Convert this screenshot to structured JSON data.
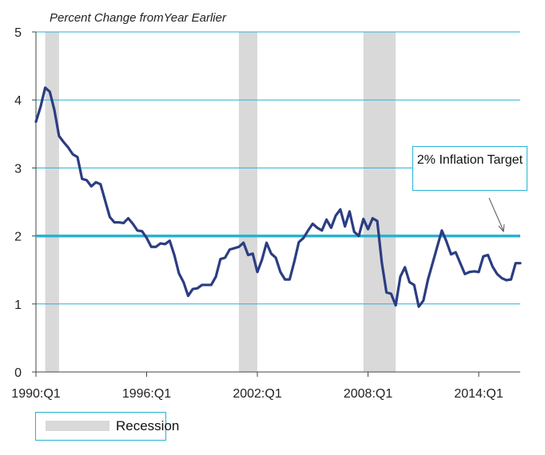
{
  "chart_data": {
    "type": "line",
    "title": "Percent Change fromYear Earlier",
    "ylim": [
      0,
      5
    ],
    "yticks": [
      "0",
      "1",
      "2",
      "3",
      "4",
      "5"
    ],
    "xlim": [
      "1990:Q1",
      "2016:Q1"
    ],
    "xticks": [
      "1990:Q1",
      "1996:Q1",
      "2002:Q1",
      "2008:Q1",
      "2014:Q1"
    ],
    "target_value": 2,
    "target_label": "2% Inflation Target",
    "legend": [
      "Recession"
    ],
    "recessions": [
      [
        "1990:Q3",
        "1991:Q1"
      ],
      [
        "2001:Q1",
        "2001:Q4"
      ],
      [
        "2007:Q4",
        "2009:Q2"
      ]
    ],
    "series": [
      {
        "values": [
          [
            "1990:Q1",
            3.68
          ],
          [
            "1990:Q2",
            3.9
          ],
          [
            "1990:Q3",
            4.18
          ],
          [
            "1990:Q4",
            4.12
          ],
          [
            "1991:Q1",
            3.85
          ],
          [
            "1991:Q2",
            3.47
          ],
          [
            "1991:Q3",
            3.38
          ],
          [
            "1991:Q4",
            3.3
          ],
          [
            "1992:Q1",
            3.2
          ],
          [
            "1992:Q2",
            3.16
          ],
          [
            "1992:Q3",
            2.84
          ],
          [
            "1992:Q4",
            2.82
          ],
          [
            "1993:Q1",
            2.73
          ],
          [
            "1993:Q2",
            2.79
          ],
          [
            "1993:Q3",
            2.76
          ],
          [
            "1993:Q4",
            2.52
          ],
          [
            "1994:Q1",
            2.28
          ],
          [
            "1994:Q2",
            2.2
          ],
          [
            "1994:Q3",
            2.2
          ],
          [
            "1994:Q4",
            2.19
          ],
          [
            "1995:Q1",
            2.26
          ],
          [
            "1995:Q2",
            2.18
          ],
          [
            "1995:Q3",
            2.08
          ],
          [
            "1995:Q4",
            2.07
          ],
          [
            "1996:Q1",
            1.97
          ],
          [
            "1996:Q2",
            1.84
          ],
          [
            "1996:Q3",
            1.84
          ],
          [
            "1996:Q4",
            1.89
          ],
          [
            "1997:Q1",
            1.88
          ],
          [
            "1997:Q2",
            1.93
          ],
          [
            "1997:Q3",
            1.72
          ],
          [
            "1997:Q4",
            1.45
          ],
          [
            "1998:Q1",
            1.32
          ],
          [
            "1998:Q2",
            1.12
          ],
          [
            "1998:Q3",
            1.22
          ],
          [
            "1998:Q4",
            1.23
          ],
          [
            "1999:Q1",
            1.28
          ],
          [
            "1999:Q2",
            1.28
          ],
          [
            "1999:Q3",
            1.28
          ],
          [
            "1999:Q4",
            1.4
          ],
          [
            "2000:Q1",
            1.66
          ],
          [
            "2000:Q2",
            1.68
          ],
          [
            "2000:Q3",
            1.8
          ],
          [
            "2000:Q4",
            1.82
          ],
          [
            "2001:Q1",
            1.84
          ],
          [
            "2001:Q2",
            1.9
          ],
          [
            "2001:Q3",
            1.72
          ],
          [
            "2001:Q4",
            1.74
          ],
          [
            "2002:Q1",
            1.47
          ],
          [
            "2002:Q2",
            1.65
          ],
          [
            "2002:Q3",
            1.9
          ],
          [
            "2002:Q4",
            1.74
          ],
          [
            "2003:Q1",
            1.68
          ],
          [
            "2003:Q2",
            1.47
          ],
          [
            "2003:Q3",
            1.36
          ],
          [
            "2003:Q4",
            1.36
          ],
          [
            "2004:Q1",
            1.62
          ],
          [
            "2004:Q2",
            1.91
          ],
          [
            "2004:Q3",
            1.97
          ],
          [
            "2004:Q4",
            2.08
          ],
          [
            "2005:Q1",
            2.18
          ],
          [
            "2005:Q2",
            2.12
          ],
          [
            "2005:Q3",
            2.08
          ],
          [
            "2005:Q4",
            2.24
          ],
          [
            "2006:Q1",
            2.12
          ],
          [
            "2006:Q2",
            2.3
          ],
          [
            "2006:Q3",
            2.39
          ],
          [
            "2006:Q4",
            2.14
          ],
          [
            "2007:Q1",
            2.36
          ],
          [
            "2007:Q2",
            2.06
          ],
          [
            "2007:Q3",
            2.0
          ],
          [
            "2007:Q4",
            2.25
          ],
          [
            "2008:Q1",
            2.1
          ],
          [
            "2008:Q2",
            2.26
          ],
          [
            "2008:Q3",
            2.22
          ],
          [
            "2008:Q4",
            1.6
          ],
          [
            "2009:Q1",
            1.17
          ],
          [
            "2009:Q2",
            1.15
          ],
          [
            "2009:Q3",
            0.98
          ],
          [
            "2009:Q4",
            1.4
          ],
          [
            "2010:Q1",
            1.54
          ],
          [
            "2010:Q2",
            1.32
          ],
          [
            "2010:Q3",
            1.28
          ],
          [
            "2010:Q4",
            0.96
          ],
          [
            "2011:Q1",
            1.05
          ],
          [
            "2011:Q2",
            1.36
          ],
          [
            "2011:Q3",
            1.6
          ],
          [
            "2011:Q4",
            1.84
          ],
          [
            "2012:Q1",
            2.08
          ],
          [
            "2012:Q2",
            1.92
          ],
          [
            "2012:Q3",
            1.73
          ],
          [
            "2012:Q4",
            1.76
          ],
          [
            "2013:Q1",
            1.6
          ],
          [
            "2013:Q2",
            1.44
          ],
          [
            "2013:Q3",
            1.47
          ],
          [
            "2013:Q4",
            1.48
          ],
          [
            "2014:Q1",
            1.47
          ],
          [
            "2014:Q2",
            1.7
          ],
          [
            "2014:Q3",
            1.72
          ],
          [
            "2014:Q4",
            1.55
          ],
          [
            "2015:Q1",
            1.44
          ],
          [
            "2015:Q2",
            1.38
          ],
          [
            "2015:Q3",
            1.35
          ],
          [
            "2015:Q4",
            1.36
          ],
          [
            "2016:Q1",
            1.6
          ],
          [
            "2016:Q2",
            1.6
          ]
        ]
      }
    ]
  }
}
